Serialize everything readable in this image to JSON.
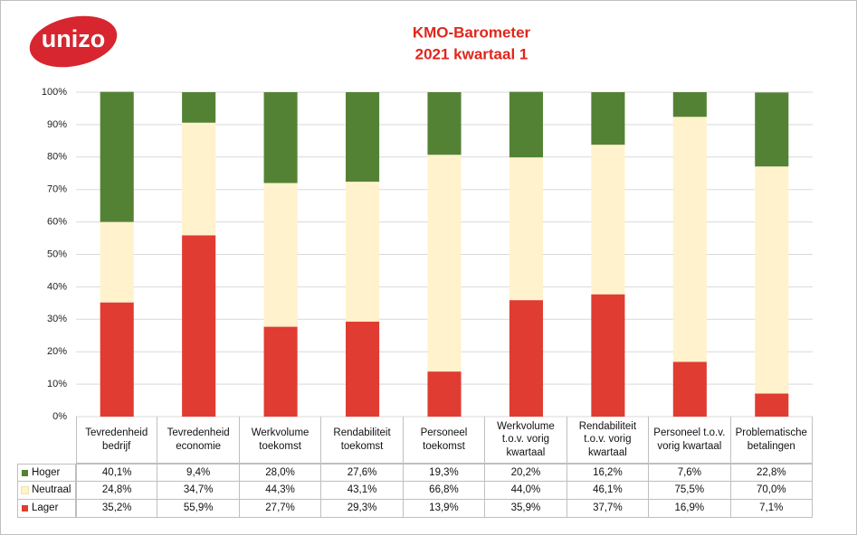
{
  "logo": "unizo",
  "chart_data": {
    "type": "stacked-bar",
    "title": "KMO-Barometer",
    "subtitle": "2021 kwartaal 1",
    "categories": [
      "Tevredenheid bedrijf",
      "Tevredenheid economie",
      "Werkvolume toekomst",
      "Rendabiliteit toekomst",
      "Personeel toekomst",
      "Werkvolume t.o.v. vorig kwartaal",
      "Rendabiliteit t.o.v. vorig kwartaal",
      "Personeel t.o.v. vorig kwartaal",
      "Problematische betalingen"
    ],
    "series": [
      {
        "name": "Hoger",
        "color": "#548235",
        "values": [
          40.1,
          9.4,
          28.0,
          27.6,
          19.3,
          20.2,
          16.2,
          7.6,
          22.8
        ],
        "value_labels": [
          "40,1%",
          "9,4%",
          "28,0%",
          "27,6%",
          "19,3%",
          "20,2%",
          "16,2%",
          "7,6%",
          "22,8%"
        ]
      },
      {
        "name": "Neutraal",
        "color": "#fff2cc",
        "values": [
          24.8,
          34.7,
          44.3,
          43.1,
          66.8,
          44.0,
          46.1,
          75.5,
          70.0
        ],
        "value_labels": [
          "24,8%",
          "34,7%",
          "44,3%",
          "43,1%",
          "66,8%",
          "44,0%",
          "46,1%",
          "75,5%",
          "70,0%"
        ]
      },
      {
        "name": "Lager",
        "color": "#e03c31",
        "values": [
          35.2,
          55.9,
          27.7,
          29.3,
          13.9,
          35.9,
          37.7,
          16.9,
          7.1
        ],
        "value_labels": [
          "35,2%",
          "55,9%",
          "27,7%",
          "29,3%",
          "13,9%",
          "35,9%",
          "37,7%",
          "16,9%",
          "7,1%"
        ]
      }
    ],
    "ylim": [
      0,
      100
    ],
    "yticks": [
      {
        "value": 0,
        "label": "0%"
      },
      {
        "value": 10,
        "label": "10%"
      },
      {
        "value": 20,
        "label": "20%"
      },
      {
        "value": 30,
        "label": "30%"
      },
      {
        "value": 40,
        "label": "40%"
      },
      {
        "value": 50,
        "label": "50%"
      },
      {
        "value": 60,
        "label": "60%"
      },
      {
        "value": 70,
        "label": "70%"
      },
      {
        "value": 80,
        "label": "80%"
      },
      {
        "value": 90,
        "label": "90%"
      },
      {
        "value": 100,
        "label": "100%"
      }
    ],
    "grid": true
  }
}
